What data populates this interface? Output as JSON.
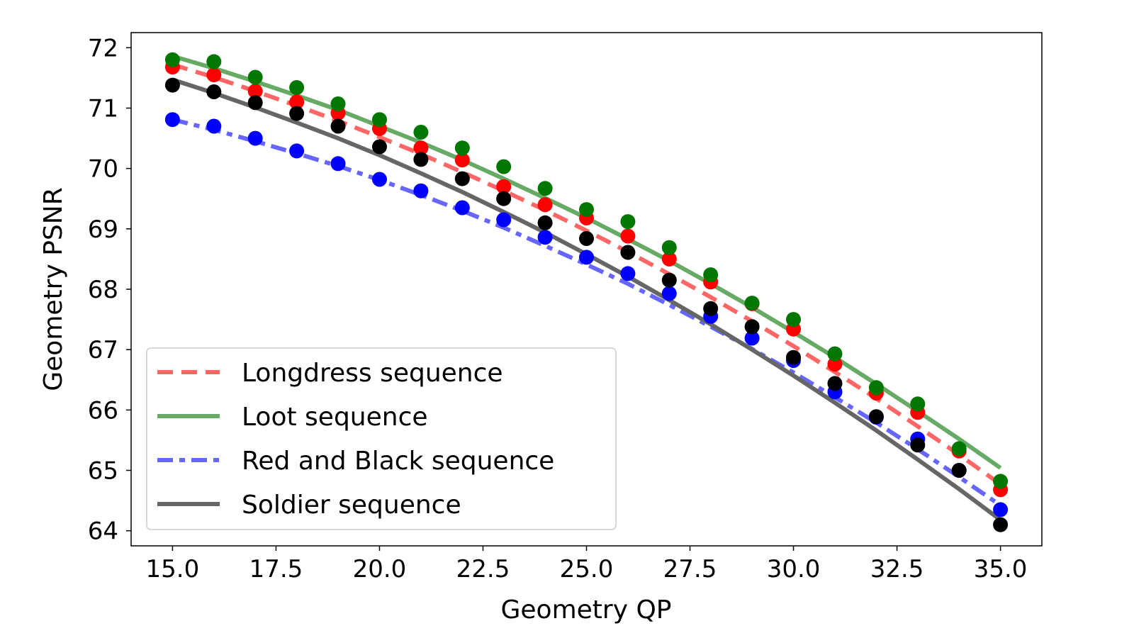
{
  "chart_data": {
    "type": "line",
    "title": "",
    "xlabel": "Geometry QP",
    "ylabel": "Geometry PSNR",
    "xlim": [
      14,
      36
    ],
    "ylim": [
      63.75,
      72.25
    ],
    "x_ticks": [
      15.0,
      17.5,
      20.0,
      22.5,
      25.0,
      27.5,
      30.0,
      32.5,
      35.0
    ],
    "x_tick_labels": [
      "15.0",
      "17.5",
      "20.0",
      "22.5",
      "25.0",
      "27.5",
      "30.0",
      "32.5",
      "35.0"
    ],
    "y_ticks": [
      64,
      65,
      66,
      67,
      68,
      69,
      70,
      71,
      72
    ],
    "y_tick_labels": [
      "64",
      "65",
      "66",
      "67",
      "68",
      "69",
      "70",
      "71",
      "72"
    ],
    "grid": false,
    "legend_position": "bottom-left",
    "x": [
      15,
      16,
      17,
      18,
      19,
      20,
      21,
      22,
      23,
      24,
      25,
      26,
      27,
      28,
      29,
      30,
      31,
      32,
      33,
      34,
      35
    ],
    "series": [
      {
        "name": "Longdress sequence",
        "line_color": "#ff6666",
        "marker_color": "#ff0000",
        "line_style": "dashed",
        "fit": [
          71.72,
          71.51,
          71.28,
          71.04,
          70.79,
          70.52,
          70.24,
          69.94,
          69.63,
          69.31,
          68.97,
          68.62,
          68.25,
          67.87,
          67.47,
          67.06,
          66.63,
          66.19,
          65.73,
          65.26,
          64.77
        ],
        "values": [
          71.68,
          71.55,
          71.28,
          71.1,
          70.92,
          70.66,
          70.34,
          70.14,
          69.7,
          69.4,
          69.18,
          68.88,
          68.5,
          68.12,
          67.76,
          67.34,
          66.76,
          66.28,
          65.96,
          65.32,
          64.68
        ]
      },
      {
        "name": "Loot sequence",
        "line_color": "#66aa66",
        "marker_color": "#007700",
        "line_style": "solid",
        "fit": [
          71.86,
          71.66,
          71.44,
          71.21,
          70.97,
          70.7,
          70.43,
          70.14,
          69.83,
          69.51,
          69.18,
          68.83,
          68.47,
          68.09,
          67.7,
          67.29,
          66.87,
          66.43,
          65.98,
          65.52,
          65.04
        ],
        "values": [
          71.8,
          71.77,
          71.51,
          71.34,
          71.07,
          70.81,
          70.6,
          70.34,
          70.03,
          69.67,
          69.32,
          69.12,
          68.69,
          68.24,
          67.77,
          67.5,
          66.93,
          66.37,
          66.1,
          65.36,
          64.82
        ]
      },
      {
        "name": "Red and Black sequence",
        "line_color": "#6666ff",
        "marker_color": "#0000ff",
        "line_style": "dashdot",
        "fit": [
          70.81,
          70.64,
          70.45,
          70.25,
          70.04,
          69.81,
          69.56,
          69.3,
          69.02,
          68.72,
          68.41,
          68.09,
          67.74,
          67.38,
          67.01,
          66.62,
          66.21,
          65.79,
          65.35,
          64.89,
          64.42
        ],
        "values": [
          70.81,
          70.7,
          70.5,
          70.29,
          70.08,
          69.82,
          69.63,
          69.35,
          69.15,
          68.86,
          68.53,
          68.26,
          67.93,
          67.55,
          67.19,
          66.82,
          66.3,
          65.88,
          65.52,
          65.0,
          64.35
        ]
      },
      {
        "name": "Soldier sequence",
        "line_color": "#666666",
        "marker_color": "#000000",
        "line_style": "solid",
        "fit": [
          71.47,
          71.25,
          71.01,
          70.76,
          70.5,
          70.22,
          69.92,
          69.61,
          69.28,
          68.94,
          68.58,
          68.21,
          67.82,
          67.42,
          67.0,
          66.57,
          66.12,
          65.66,
          65.18,
          64.69,
          64.18
        ],
        "values": [
          71.38,
          71.27,
          71.09,
          70.91,
          70.7,
          70.36,
          70.15,
          69.83,
          69.5,
          69.1,
          68.84,
          68.61,
          68.15,
          67.68,
          67.38,
          66.87,
          66.44,
          65.89,
          65.42,
          65.0,
          64.1
        ]
      }
    ]
  }
}
